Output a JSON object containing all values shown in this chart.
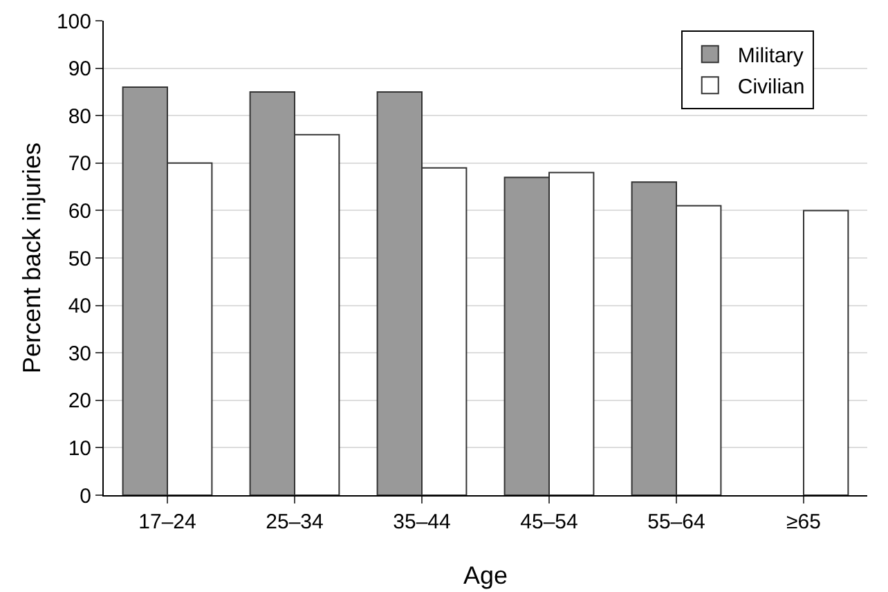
{
  "chart_data": {
    "type": "bar",
    "xlabel": "Age",
    "ylabel": "Percent back injuries",
    "categories": [
      "17–24",
      "25–34",
      "35–44",
      "45–54",
      "55–64",
      "≥65"
    ],
    "series": [
      {
        "name": "Military",
        "color": "#999999",
        "values": [
          86,
          85,
          85,
          67,
          66,
          null
        ]
      },
      {
        "name": "Civilian",
        "color": "#ffffff",
        "values": [
          70,
          76,
          69,
          68,
          61,
          60
        ]
      }
    ],
    "ylim": [
      0,
      100
    ],
    "yticks": [
      0,
      10,
      20,
      30,
      40,
      50,
      60,
      70,
      80,
      90,
      100
    ],
    "grid": "y",
    "legend": "top right"
  }
}
